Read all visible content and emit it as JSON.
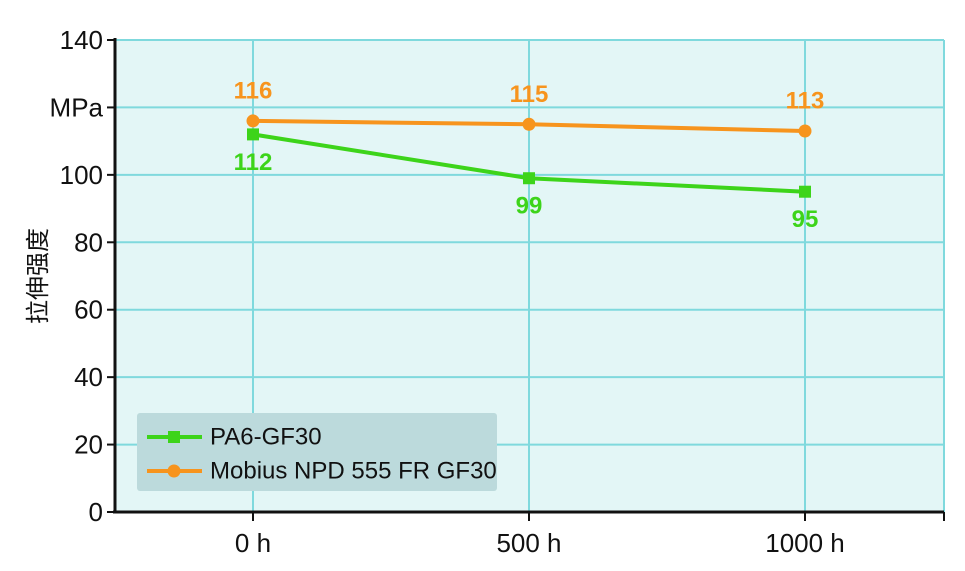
{
  "chart_data": {
    "type": "line",
    "title": "",
    "xlabel": "",
    "ylabel": "拉伸强度",
    "unit": "MPa",
    "categories": [
      "0 h",
      "500 h",
      "1000 h"
    ],
    "ylim": [
      0,
      140
    ],
    "yticks": [
      "0",
      "20",
      "40",
      "60",
      "80",
      "100",
      "MPa",
      "140"
    ],
    "grid": true,
    "legend_position": "bottom-left",
    "background_color": "#e3f6f6",
    "grid_color": "#7fd9dd",
    "series": [
      {
        "name": "PA6-GF30",
        "values": [
          112,
          99,
          95
        ],
        "labels": [
          "112",
          "99",
          "95"
        ],
        "color": "#3dd41a",
        "marker": "square"
      },
      {
        "name": "Mobius NPD 555 FR GF30",
        "values": [
          116,
          115,
          113
        ],
        "labels": [
          "116",
          "115",
          "113"
        ],
        "color": "#f7941d",
        "marker": "circle"
      }
    ]
  }
}
